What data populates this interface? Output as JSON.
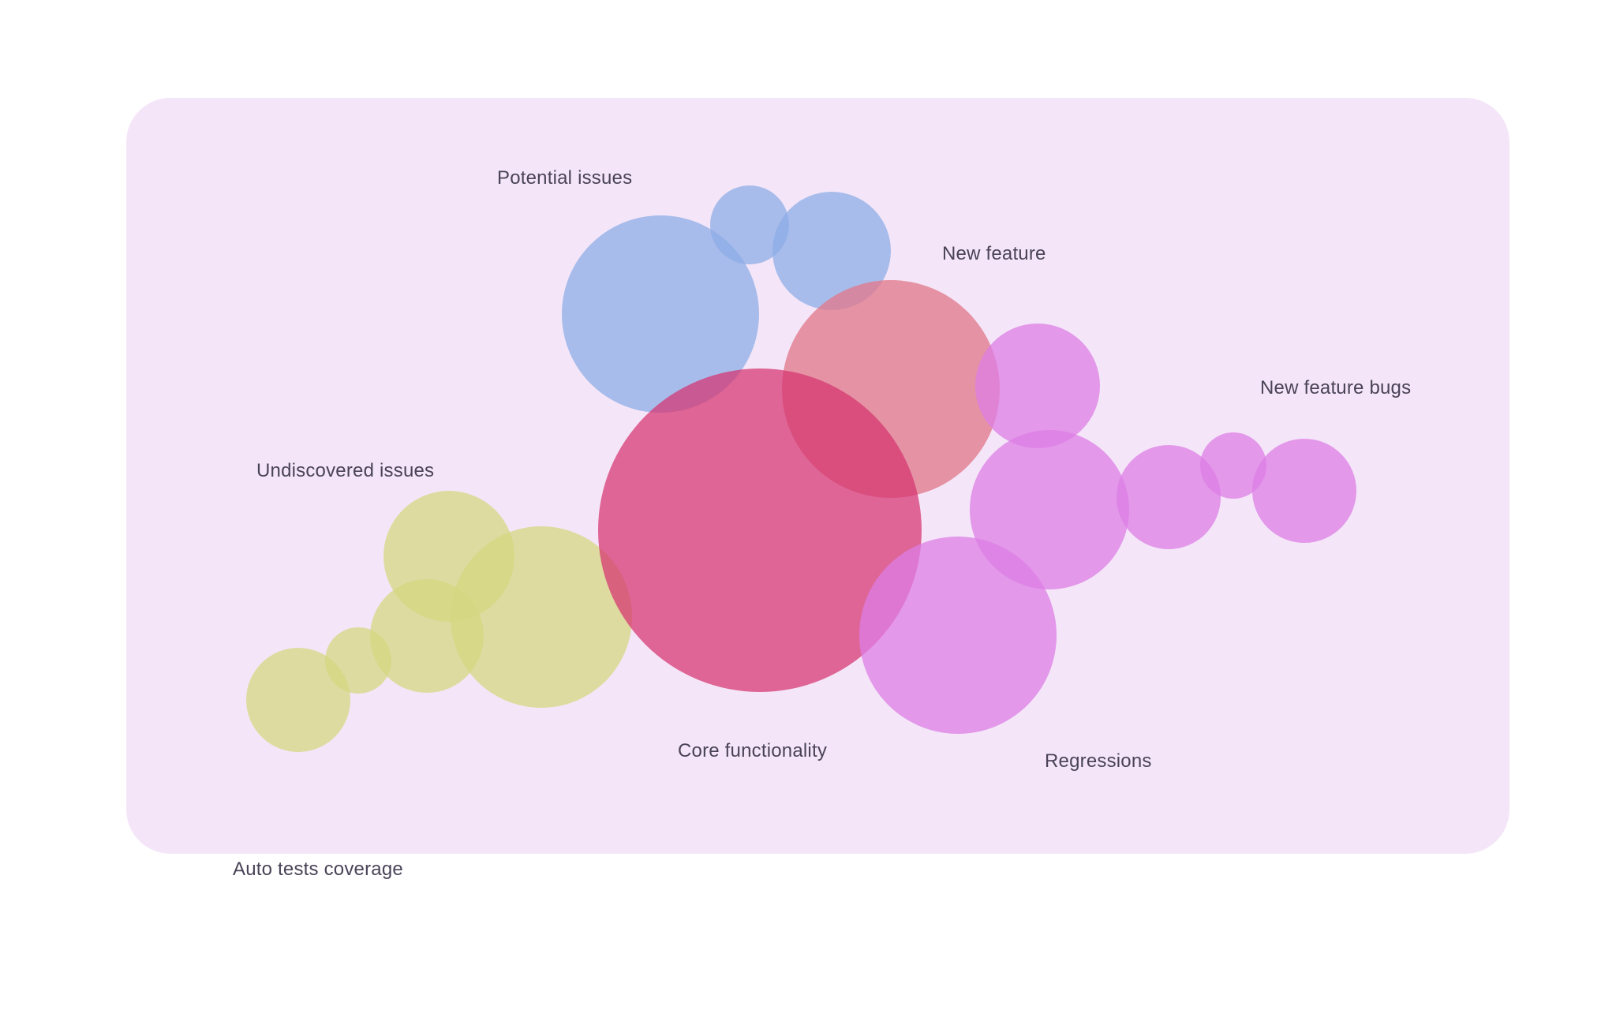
{
  "diagram": {
    "labels": {
      "potential_issues": "Potential issues",
      "new_feature": "New feature",
      "new_feature_bugs": "New feature bugs",
      "undiscovered_issues": "Undiscovered issues",
      "core_functionality": "Core functionality",
      "regressions": "Regressions",
      "auto_tests_coverage": "Auto tests coverage"
    },
    "colors": {
      "board": "#f4e6f8",
      "blue": "#8aace6",
      "salmon": "#e07a8c",
      "crimson": "#d6336f",
      "violet": "#dd7ee6",
      "olive": "#d6d77f"
    }
  }
}
